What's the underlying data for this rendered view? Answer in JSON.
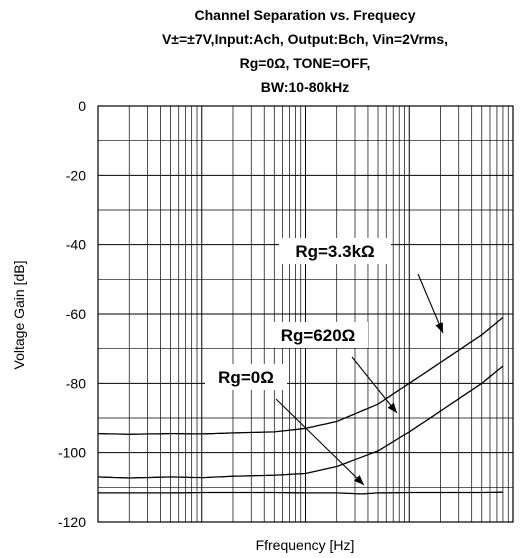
{
  "chart_data": {
    "type": "line",
    "title_lines": [
      "Channel Separation vs. Frequecy",
      "V±=±7V,Input:Ach, Output:Bch, Vin=2Vrms,",
      "Rg=0Ω, TONE=OFF,",
      "BW:10-80kHz"
    ],
    "xlabel": "Ffrequency [Hz]",
    "ylabel": "Voltage Gain [dB]",
    "xscale": "log",
    "xlim": [
      10,
      100000
    ],
    "ylim": [
      -120,
      0
    ],
    "yticks": [
      0,
      -20,
      -40,
      -60,
      -80,
      -100,
      -120
    ],
    "ytick_labels": [
      "0",
      "-20",
      "-40",
      "-60",
      "-80",
      "-100",
      "-120"
    ],
    "grid": true,
    "series": [
      {
        "name": "Rg=3.3kΩ",
        "x": [
          10,
          20,
          50,
          100,
          200,
          500,
          1000,
          2000,
          5000,
          10000,
          20000,
          50000,
          80000
        ],
        "y": [
          -94.5,
          -94.7,
          -94.5,
          -94.6,
          -94.3,
          -94.0,
          -93.0,
          -91.0,
          -86.0,
          -80.0,
          -74.0,
          -66.0,
          -61.0
        ]
      },
      {
        "name": "Rg=620Ω",
        "x": [
          10,
          20,
          50,
          100,
          200,
          500,
          1000,
          2000,
          5000,
          10000,
          20000,
          50000,
          80000
        ],
        "y": [
          -107.0,
          -107.3,
          -107.0,
          -107.2,
          -106.8,
          -106.5,
          -106.0,
          -104.0,
          -99.5,
          -94.0,
          -88.0,
          -80.0,
          -75.0
        ]
      },
      {
        "name": "Rg=0Ω",
        "x": [
          10,
          50,
          100,
          500,
          1000,
          2000,
          3500,
          5000,
          10000,
          20000,
          50000,
          80000
        ],
        "y": [
          -111.6,
          -111.6,
          -111.5,
          -111.5,
          -111.6,
          -111.6,
          -111.9,
          -111.6,
          -111.5,
          -111.5,
          -111.5,
          -111.4
        ]
      }
    ],
    "annotations": [
      {
        "text": "Rg=3.3kΩ",
        "series": 0
      },
      {
        "text": "Rg=620Ω",
        "series": 1
      },
      {
        "text": "Rg=0Ω",
        "series": 2
      }
    ]
  }
}
